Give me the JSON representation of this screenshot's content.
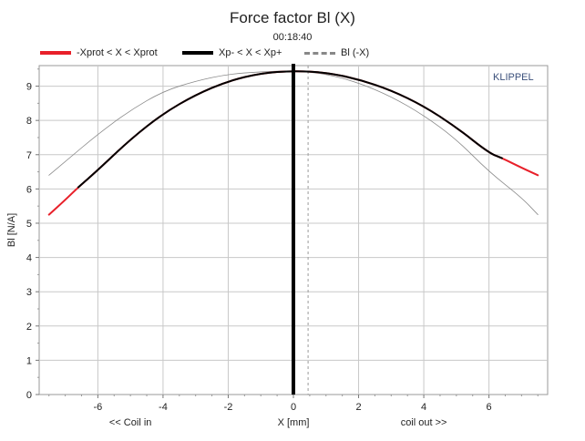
{
  "chart_data": {
    "type": "line",
    "title": "Force factor Bl (X)",
    "subtitle": "00:18:40",
    "brand": "KLIPPEL",
    "xlabel": "X [mm]",
    "xlabel_left": "<< Coil in",
    "xlabel_right": "coil out >>",
    "ylabel": "Bl [N/A]",
    "xlim": [
      -7.8,
      7.8
    ],
    "ylim": [
      0,
      9.6
    ],
    "xticks": [
      -6,
      -4,
      -2,
      0,
      2,
      4,
      6
    ],
    "yticks": [
      0,
      1,
      2,
      3,
      4,
      5,
      6,
      7,
      8,
      9
    ],
    "legend_placement": "top",
    "grid": true,
    "colors": {
      "prot": "#e8202a",
      "operating": "#000000",
      "mirror": "#8a8a8a"
    },
    "legend": [
      {
        "label": "-Xprot < X < Xprot",
        "style": "prot"
      },
      {
        "label": "Xp- < X < Xp+",
        "style": "operating"
      },
      {
        "label": "Bl (-X)",
        "style": "mirror"
      }
    ],
    "x_prot_limits": [
      -7.5,
      7.5
    ],
    "x_operating_limits": [
      -6.6,
      6.4
    ],
    "rest_position_marker": 0,
    "offset_marker": 0.45,
    "series": [
      {
        "name": "-Xprot < X < Xprot",
        "style": "prot",
        "x": [
          -7.5,
          -7.0,
          -6.6,
          -6.0,
          -5.0,
          -4.0,
          -3.0,
          -2.0,
          -1.0,
          0.0,
          1.0,
          2.0,
          3.0,
          4.0,
          5.0,
          6.0,
          6.4,
          7.0,
          7.5
        ],
        "y": [
          5.25,
          5.68,
          6.05,
          6.55,
          7.45,
          8.2,
          8.75,
          9.15,
          9.38,
          9.45,
          9.4,
          9.2,
          8.88,
          8.42,
          7.8,
          7.05,
          6.9,
          6.62,
          6.4
        ]
      },
      {
        "name": "Xp- < X < Xp+",
        "style": "operating",
        "x": [
          -6.6,
          -6.0,
          -5.0,
          -4.0,
          -3.0,
          -2.0,
          -1.0,
          0.0,
          1.0,
          2.0,
          3.0,
          4.0,
          5.0,
          6.0,
          6.4
        ],
        "y": [
          6.05,
          6.55,
          7.45,
          8.2,
          8.75,
          9.15,
          9.38,
          9.45,
          9.4,
          9.2,
          8.88,
          8.42,
          7.8,
          7.05,
          6.9
        ]
      },
      {
        "name": "Bl (-X)",
        "style": "mirror",
        "x": [
          -7.5,
          -7.0,
          -6.0,
          -5.0,
          -4.0,
          -3.0,
          -2.0,
          -1.0,
          0.0,
          1.0,
          2.0,
          3.0,
          4.0,
          5.0,
          6.0,
          7.0,
          7.5
        ],
        "y": [
          6.4,
          6.8,
          7.6,
          8.3,
          8.85,
          9.15,
          9.35,
          9.42,
          9.45,
          9.36,
          9.1,
          8.7,
          8.15,
          7.45,
          6.5,
          5.75,
          5.25
        ]
      }
    ]
  }
}
